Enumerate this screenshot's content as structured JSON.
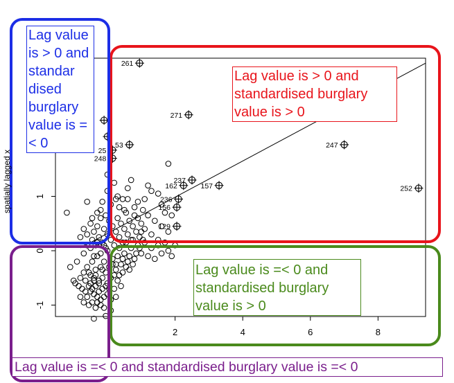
{
  "chart_data": {
    "type": "scatter",
    "xlabel": "",
    "ylabel": "spatially lagged x",
    "xlim": [
      -1.4,
      9.5
    ],
    "ylim": [
      -1.6,
      3.5
    ],
    "xticks": [
      2,
      4,
      6,
      8
    ],
    "yticks": [
      -1,
      0,
      1
    ],
    "regression_line": {
      "intercept": 0.3,
      "slope": 0.31
    },
    "labelled_points": [
      {
        "label": "261",
        "x": 0.95,
        "y": 3.45
      },
      {
        "label": "271",
        "x": 2.4,
        "y": 2.5
      },
      {
        "label": "247",
        "x": 7.0,
        "y": 1.95
      },
      {
        "label": "252",
        "x": 9.2,
        "y": 1.15
      },
      {
        "label": "237",
        "x": 2.5,
        "y": 1.3
      },
      {
        "label": "157",
        "x": 3.3,
        "y": 1.2
      },
      {
        "label": "162",
        "x": 2.25,
        "y": 1.2
      },
      {
        "label": "236",
        "x": 2.1,
        "y": 0.95
      },
      {
        "label": "156",
        "x": 2.05,
        "y": 0.8
      },
      {
        "label": "129",
        "x": 2.05,
        "y": 0.45
      },
      {
        "label": "53",
        "x": 0.65,
        "y": 1.95
      },
      {
        "label": "25",
        "x": 0.15,
        "y": 1.85
      },
      {
        "label": "248",
        "x": 0.15,
        "y": 1.7
      },
      {
        "label": "",
        "x": -0.1,
        "y": 2.4
      },
      {
        "label": "",
        "x": 0.0,
        "y": 2.1
      }
    ],
    "points": [
      [
        -1.1,
        -0.3
      ],
      [
        -0.9,
        -0.2
      ],
      [
        -0.8,
        -0.5
      ],
      [
        -0.7,
        -0.4
      ],
      [
        -0.6,
        -0.3
      ],
      [
        -0.5,
        -0.45
      ],
      [
        -0.45,
        -0.2
      ],
      [
        -0.4,
        -0.55
      ],
      [
        -0.35,
        -0.35
      ],
      [
        -0.3,
        -0.1
      ],
      [
        -0.25,
        -0.6
      ],
      [
        -0.2,
        -0.3
      ],
      [
        -0.15,
        -0.5
      ],
      [
        -0.1,
        -0.2
      ],
      [
        -0.05,
        -0.4
      ],
      [
        0.0,
        -0.6
      ],
      [
        0.05,
        -0.3
      ],
      [
        0.1,
        -0.5
      ],
      [
        0.15,
        -0.15
      ],
      [
        0.2,
        -0.45
      ],
      [
        0.25,
        -0.25
      ],
      [
        -0.95,
        -0.6
      ],
      [
        -0.85,
        -0.65
      ],
      [
        -0.75,
        -0.7
      ],
      [
        -0.65,
        -0.55
      ],
      [
        -0.55,
        -0.65
      ],
      [
        -0.5,
        -0.75
      ],
      [
        -0.45,
        -0.7
      ],
      [
        -0.4,
        -0.8
      ],
      [
        -0.35,
        -0.65
      ],
      [
        -0.3,
        -0.85
      ],
      [
        -0.25,
        -0.75
      ],
      [
        -0.2,
        -0.9
      ],
      [
        -0.15,
        -0.7
      ],
      [
        -0.1,
        -0.85
      ],
      [
        -0.05,
        -0.65
      ],
      [
        0.0,
        -0.8
      ],
      [
        0.05,
        -0.7
      ],
      [
        0.1,
        -0.9
      ],
      [
        -0.6,
        -0.85
      ],
      [
        -0.7,
        -0.95
      ],
      [
        -0.55,
        -1.0
      ],
      [
        -0.45,
        -0.95
      ],
      [
        -0.35,
        -1.05
      ],
      [
        -0.3,
        -0.95
      ],
      [
        -0.2,
        -1.0
      ],
      [
        -0.1,
        -1.05
      ],
      [
        -0.5,
        -0.6
      ],
      [
        -0.4,
        -0.5
      ],
      [
        -0.55,
        -0.4
      ],
      [
        -1.0,
        -0.55
      ],
      [
        -0.8,
        -0.85
      ],
      [
        -0.65,
        -0.75
      ],
      [
        -0.35,
        -0.45
      ],
      [
        -0.25,
        -0.55
      ],
      [
        -0.15,
        -0.35
      ],
      [
        -0.8,
        0.25
      ],
      [
        -0.7,
        0.4
      ],
      [
        -0.6,
        0.3
      ],
      [
        -0.5,
        0.5
      ],
      [
        -0.45,
        0.2
      ],
      [
        -0.4,
        0.35
      ],
      [
        -0.35,
        0.1
      ],
      [
        -0.3,
        0.45
      ],
      [
        -0.25,
        0.25
      ],
      [
        -0.2,
        0.6
      ],
      [
        -0.15,
        0.15
      ],
      [
        -0.1,
        0.4
      ],
      [
        -0.05,
        0.05
      ],
      [
        0.0,
        0.3
      ],
      [
        0.05,
        0.55
      ],
      [
        0.1,
        0.2
      ],
      [
        0.15,
        0.45
      ],
      [
        0.2,
        0.1
      ],
      [
        0.25,
        0.35
      ],
      [
        0.3,
        0.6
      ],
      [
        0.35,
        0.25
      ],
      [
        0.4,
        0.5
      ],
      [
        0.45,
        0.15
      ],
      [
        0.5,
        0.4
      ],
      [
        0.55,
        0.7
      ],
      [
        0.6,
        0.3
      ],
      [
        0.65,
        0.55
      ],
      [
        0.7,
        0.2
      ],
      [
        0.75,
        0.45
      ],
      [
        0.8,
        0.8
      ],
      [
        0.85,
        0.35
      ],
      [
        0.9,
        0.6
      ],
      [
        0.95,
        0.25
      ],
      [
        1.0,
        0.5
      ],
      [
        1.05,
        0.75
      ],
      [
        1.1,
        0.4
      ],
      [
        1.2,
        0.65
      ],
      [
        1.3,
        0.3
      ],
      [
        1.4,
        0.55
      ],
      [
        1.5,
        0.2
      ],
      [
        1.6,
        0.45
      ],
      [
        1.7,
        0.7
      ],
      [
        1.8,
        0.35
      ],
      [
        -1.2,
        0.7
      ],
      [
        -0.6,
        0.9
      ],
      [
        0.0,
        1.1
      ],
      [
        0.3,
        1.0
      ],
      [
        0.6,
        1.15
      ],
      [
        0.9,
        0.9
      ],
      [
        1.2,
        1.2
      ],
      [
        1.5,
        1.05
      ],
      [
        1.8,
        1.6
      ],
      [
        1.3,
        1.1
      ],
      [
        0.7,
        1.3
      ],
      [
        0.45,
        0.95
      ],
      [
        0.1,
        0.85
      ],
      [
        -0.2,
        0.75
      ],
      [
        0.0,
        1.4
      ],
      [
        0.2,
        1.25
      ],
      [
        0.5,
        0.75
      ],
      [
        0.8,
        0.65
      ],
      [
        1.1,
        0.95
      ],
      [
        0.3,
        -0.1
      ],
      [
        0.4,
        -0.25
      ],
      [
        0.5,
        -0.05
      ],
      [
        0.6,
        -0.2
      ],
      [
        0.7,
        0.05
      ],
      [
        0.8,
        -0.15
      ],
      [
        0.9,
        0.1
      ],
      [
        1.0,
        -0.05
      ],
      [
        1.1,
        0.15
      ],
      [
        1.2,
        -0.1
      ],
      [
        1.3,
        0.05
      ],
      [
        1.4,
        -0.15
      ],
      [
        1.5,
        0.1
      ],
      [
        1.6,
        -0.05
      ],
      [
        1.7,
        0.15
      ],
      [
        1.8,
        0.0
      ],
      [
        1.9,
        -0.1
      ],
      [
        2.0,
        0.1
      ],
      [
        0.35,
        0.05
      ],
      [
        0.45,
        -0.15
      ],
      [
        0.55,
        0.15
      ],
      [
        0.65,
        -0.1
      ],
      [
        0.75,
        0.2
      ],
      [
        0.85,
        -0.05
      ],
      [
        0.95,
        0.05
      ],
      [
        1.05,
        0.2
      ],
      [
        0.0,
        0.0
      ],
      [
        -0.1,
        0.1
      ],
      [
        -0.2,
        -0.05
      ],
      [
        -0.3,
        0.15
      ],
      [
        -0.4,
        -0.1
      ],
      [
        -0.5,
        0.05
      ],
      [
        -0.6,
        0.1
      ],
      [
        -0.7,
        -0.05
      ],
      [
        0.15,
        -0.25
      ],
      [
        0.25,
        -0.35
      ],
      [
        0.35,
        -0.45
      ],
      [
        0.45,
        -0.4
      ],
      [
        0.55,
        -0.3
      ],
      [
        0.65,
        -0.35
      ],
      [
        0.75,
        -0.25
      ],
      [
        0.2,
        -0.7
      ],
      [
        0.3,
        -0.55
      ],
      [
        0.4,
        -0.65
      ],
      [
        -0.05,
        -1.2
      ],
      [
        -0.4,
        -1.25
      ],
      [
        0.1,
        -1.1
      ],
      [
        0.25,
        -0.85
      ],
      [
        1.0,
        0.35
      ],
      [
        0.35,
        0.8
      ],
      [
        0.25,
        0.95
      ],
      [
        -0.05,
        0.65
      ],
      [
        0.6,
        0.95
      ],
      [
        -0.3,
        0.7
      ],
      [
        -0.15,
        0.9
      ],
      [
        -0.45,
        0.6
      ],
      [
        1.6,
        0.85
      ],
      [
        1.9,
        0.65
      ]
    ]
  },
  "annotations": {
    "q1": "Lag value is > 0 and standardised burglary value is > 0",
    "q2": "Lag value is > 0 and standar dised burglary value is =< 0",
    "q4": "Lag value is =< 0 and standardised burglary value is > 0",
    "q3": "Lag value is =< 0 and standardised burglary value is =< 0"
  },
  "colors": {
    "q1": "#e8141b",
    "q2": "#1c2ee6",
    "q4": "#4a8a1c",
    "q3": "#7a1e8c"
  }
}
